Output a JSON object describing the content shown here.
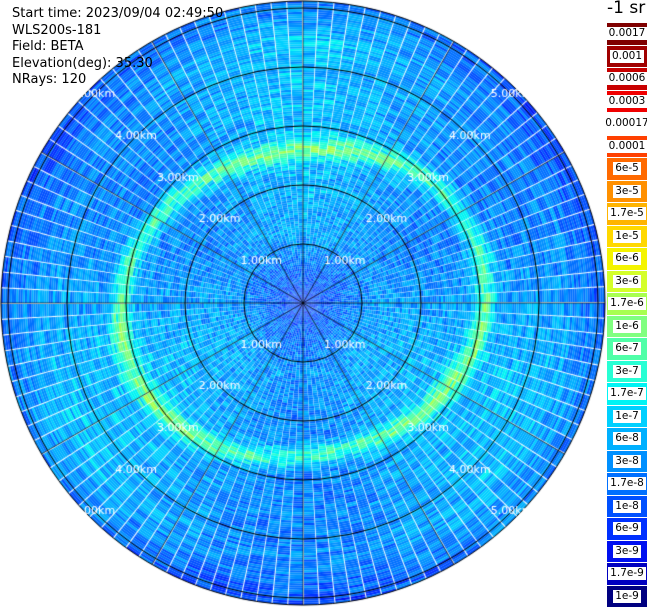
{
  "info": {
    "start_time": "Start time: 2023/09/04 02:49:50",
    "instrument": "WLS200s-181",
    "field": "Field: BETA",
    "elevation": "Elevation(deg): 35.30",
    "nrays": "NRays: 120"
  },
  "ring_labels": [
    "1.00km",
    "2.00km",
    "3.00km",
    "4.00km",
    "5.00km"
  ],
  "colorbar": {
    "unit_label": "-1 sr",
    "levels": [
      {
        "label": "0.0017",
        "color": "#7f0000"
      },
      {
        "label": "0.001",
        "color": "#a00000"
      },
      {
        "label": "0.0006",
        "color": "#c80000"
      },
      {
        "label": "0.0003",
        "color": "#f00000"
      },
      {
        "label": "0.00017",
        "color": "#ffffff"
      },
      {
        "label": "0.0001",
        "color": "#ff4000"
      },
      {
        "label": "6e-5",
        "color": "#ff6a00"
      },
      {
        "label": "3e-5",
        "color": "#ff9000"
      },
      {
        "label": "1.7e-5",
        "color": "#ffb400"
      },
      {
        "label": "1e-5",
        "color": "#ffd800"
      },
      {
        "label": "6e-6",
        "color": "#f4f400"
      },
      {
        "label": "3e-6",
        "color": "#d4ff2a"
      },
      {
        "label": "1.7e-6",
        "color": "#a8ff50"
      },
      {
        "label": "1e-6",
        "color": "#80ff80"
      },
      {
        "label": "6e-7",
        "color": "#50ffa8"
      },
      {
        "label": "3e-7",
        "color": "#28ffd4"
      },
      {
        "label": "1.7e-7",
        "color": "#00f4f4"
      },
      {
        "label": "1e-7",
        "color": "#00d0ff"
      },
      {
        "label": "6e-8",
        "color": "#00b0ff"
      },
      {
        "label": "3e-8",
        "color": "#0090ff"
      },
      {
        "label": "1.7e-8",
        "color": "#0070ff"
      },
      {
        "label": "1e-8",
        "color": "#0050ff"
      },
      {
        "label": "6e-9",
        "color": "#0030ff"
      },
      {
        "label": "3e-9",
        "color": "#0010f0"
      },
      {
        "label": "1.7e-9",
        "color": "#0000c0"
      },
      {
        "label": "1e-9",
        "color": "#000080"
      }
    ]
  }
}
